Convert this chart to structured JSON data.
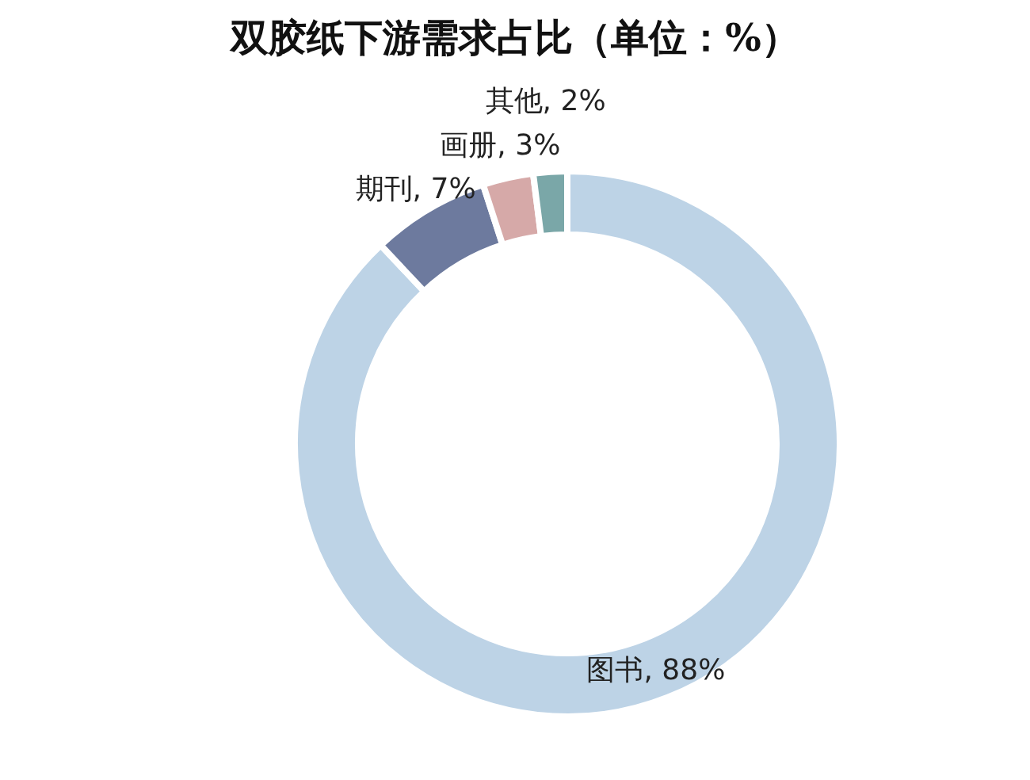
{
  "chart_data": {
    "type": "donut",
    "title": "双胶纸下游需求占比（单位：%）",
    "categories": [
      "图书",
      "期刊",
      "画册",
      "其他"
    ],
    "values": [
      88,
      7,
      3,
      2
    ],
    "value_labels": [
      ", 88%",
      ", 7%",
      ", 3%",
      ", 2%"
    ],
    "colors": [
      "#bdd3e6",
      "#6d7a9e",
      "#d6a9a8",
      "#7aa7a8"
    ]
  }
}
